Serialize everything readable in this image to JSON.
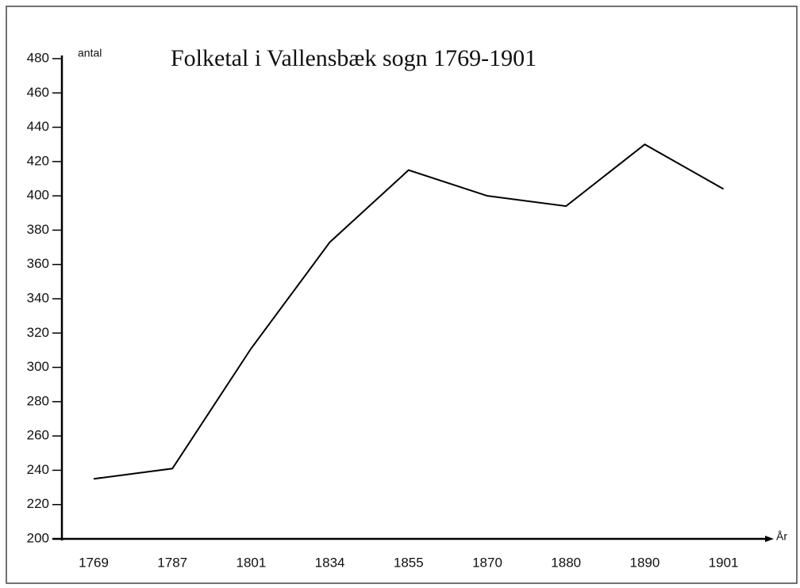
{
  "chart_data": {
    "type": "line",
    "title": "Folketal i Vallensbæk sogn 1769-1901",
    "y_label": "antal",
    "x_label": "År",
    "categories": [
      "1769",
      "1787",
      "1801",
      "1834",
      "1855",
      "1870",
      "1880",
      "1890",
      "1901"
    ],
    "series": [
      {
        "name": "Folketal",
        "color": "#000000",
        "values": [
          235,
          241,
          311,
          373,
          415,
          400,
          394,
          430,
          404
        ]
      }
    ],
    "ylim": [
      200,
      480
    ],
    "yticks": [
      200,
      220,
      240,
      260,
      280,
      300,
      320,
      340,
      360,
      380,
      400,
      420,
      440,
      460,
      480
    ],
    "grid": false
  }
}
